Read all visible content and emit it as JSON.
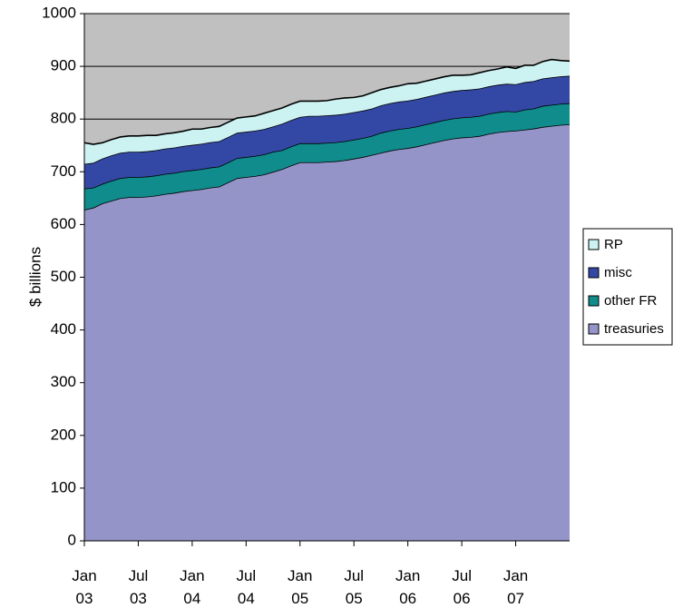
{
  "chart_data": {
    "type": "stacked_area",
    "y_label": "$ billions",
    "categories": [
      "Jan 03",
      null,
      null,
      null,
      null,
      null,
      "Jul 03",
      null,
      null,
      null,
      null,
      null,
      "Jan 04",
      null,
      null,
      null,
      null,
      null,
      "Jul 04",
      null,
      null,
      null,
      null,
      null,
      "Jan 05",
      null,
      null,
      null,
      null,
      null,
      "Jul 05",
      null,
      null,
      null,
      null,
      null,
      "Jan 06",
      null,
      null,
      null,
      null,
      null,
      "Jul 06",
      null,
      null,
      null,
      null,
      null,
      "Jan 07",
      null,
      null,
      null,
      null,
      null,
      null
    ],
    "series": [
      {
        "name": "treasuries",
        "color": "#9494c8",
        "values": [
          628,
          632,
          640,
          645,
          650,
          652,
          652,
          653,
          655,
          658,
          660,
          663,
          665,
          667,
          670,
          672,
          680,
          688,
          690,
          692,
          695,
          700,
          705,
          712,
          718,
          718,
          718,
          719,
          720,
          722,
          725,
          728,
          732,
          736,
          740,
          743,
          745,
          748,
          752,
          756,
          760,
          763,
          765,
          766,
          768,
          772,
          775,
          777,
          778,
          780,
          782,
          785,
          787,
          789,
          790
        ]
      },
      {
        "name": "other FR",
        "color": "#108c8c",
        "values": [
          40,
          38,
          37,
          38,
          38,
          38,
          38,
          38,
          38,
          38,
          38,
          38,
          38,
          38,
          38,
          38,
          38,
          38,
          38,
          38,
          38,
          38,
          36,
          36,
          36,
          36,
          36,
          36,
          36,
          36,
          36,
          36,
          36,
          38,
          38,
          38,
          38,
          38,
          38,
          38,
          38,
          38,
          38,
          38,
          38,
          38,
          38,
          38,
          36,
          38,
          38,
          40,
          40,
          40,
          40
        ]
      },
      {
        "name": "misc",
        "color": "#3348a4",
        "values": [
          47,
          47,
          48,
          48,
          48,
          48,
          48,
          48,
          48,
          48,
          48,
          48,
          48,
          48,
          48,
          48,
          48,
          48,
          48,
          48,
          48,
          48,
          50,
          50,
          50,
          52,
          52,
          52,
          52,
          52,
          52,
          52,
          52,
          52,
          52,
          52,
          52,
          52,
          52,
          52,
          52,
          52,
          52,
          52,
          52,
          52,
          52,
          52,
          52,
          52,
          52,
          52,
          52,
          52,
          52
        ]
      },
      {
        "name": "RP",
        "color": "#ccf2f2",
        "values": [
          40,
          35,
          30,
          30,
          30,
          30,
          30,
          30,
          28,
          28,
          28,
          28,
          30,
          28,
          28,
          28,
          28,
          28,
          28,
          28,
          30,
          30,
          30,
          30,
          30,
          28,
          28,
          28,
          30,
          30,
          28,
          28,
          30,
          30,
          30,
          30,
          32,
          30,
          30,
          30,
          30,
          30,
          28,
          28,
          30,
          30,
          30,
          32,
          30,
          32,
          30,
          32,
          34,
          30,
          28
        ]
      }
    ],
    "ylim": [
      0,
      1000
    ],
    "yticks": [
      0,
      100,
      200,
      300,
      400,
      500,
      600,
      700,
      800,
      900,
      1000
    ],
    "plot_background": "#c0c0c0",
    "grid": true
  }
}
